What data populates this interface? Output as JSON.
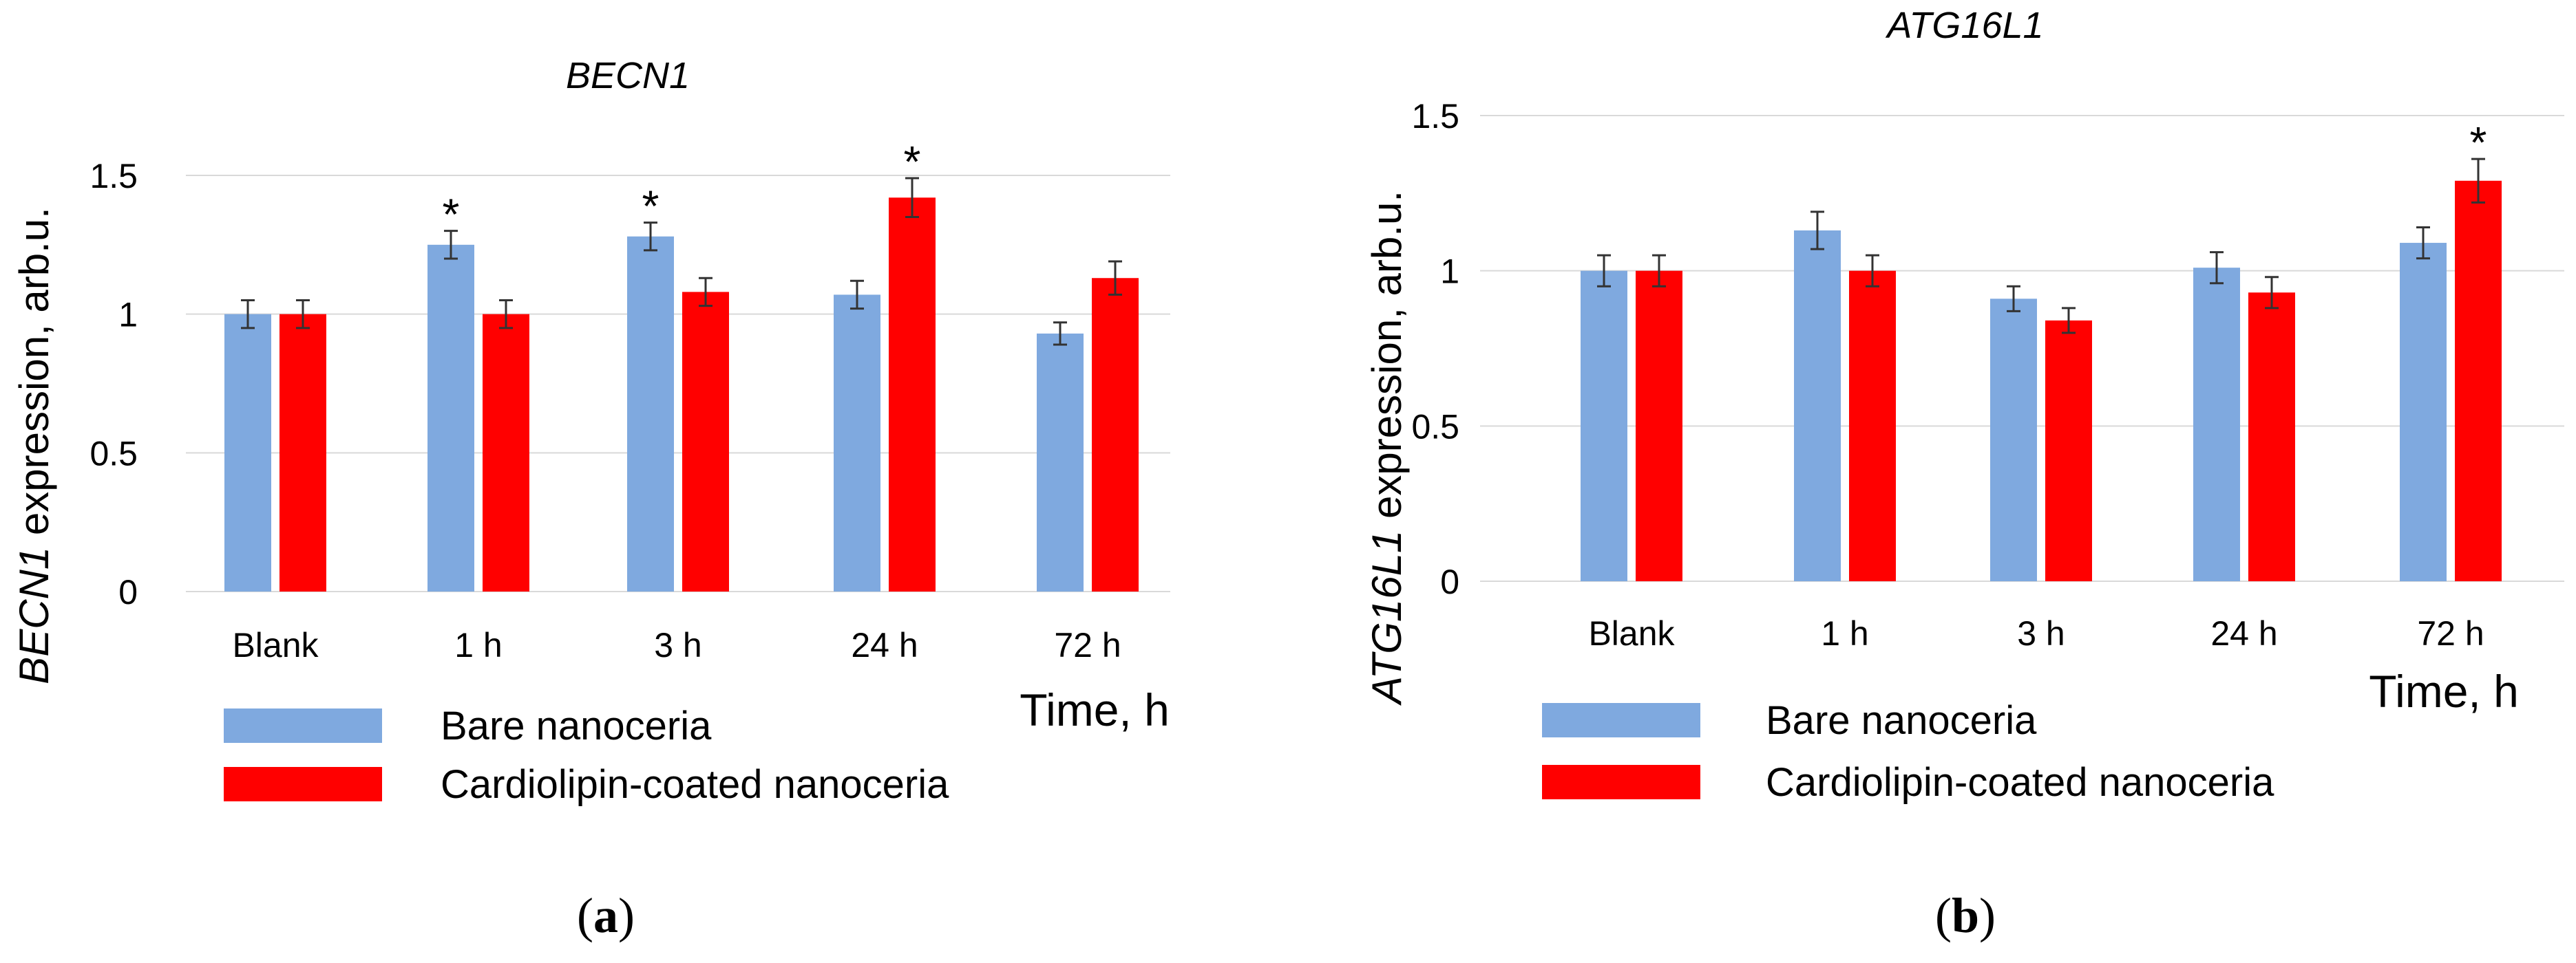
{
  "chart_data": [
    {
      "type": "bar",
      "panel_label": "a",
      "title": "BECN1",
      "ylabel_gene": "BECN1",
      "ylabel_rest": " expression, arb.u.",
      "xlabel": "Time, h",
      "categories": [
        "Blank",
        "1 h",
        "3 h",
        "24 h",
        "72 h"
      ],
      "ylim": [
        0,
        1.5
      ],
      "yticks": [
        0,
        0.5,
        1,
        1.5
      ],
      "ytick_labels": [
        "0",
        "0.5",
        "1",
        "1.5"
      ],
      "grid": true,
      "series": [
        {
          "name": "Bare nanoceria",
          "color": "#7FA9DF",
          "values": [
            1.0,
            1.25,
            1.28,
            1.07,
            0.93
          ],
          "errors": [
            0.05,
            0.05,
            0.05,
            0.05,
            0.04
          ],
          "significant": [
            false,
            true,
            true,
            false,
            false
          ]
        },
        {
          "name": "Cardiolipin-coated nanoceria",
          "color": "#FF0000",
          "values": [
            1.0,
            1.0,
            1.08,
            1.42,
            1.13
          ],
          "errors": [
            0.05,
            0.05,
            0.05,
            0.07,
            0.06
          ],
          "significant": [
            false,
            false,
            false,
            true,
            false
          ]
        }
      ],
      "significance_marker": "*",
      "legend_position": "bottom-left"
    },
    {
      "type": "bar",
      "panel_label": "b",
      "title": "ATG16L1",
      "ylabel_gene": "ATG16L1",
      "ylabel_rest": " expression, arb.u.",
      "xlabel": "Time, h",
      "categories": [
        "Blank",
        "1 h",
        "3 h",
        "24 h",
        "72 h"
      ],
      "ylim": [
        0,
        1.5
      ],
      "yticks": [
        0,
        0.5,
        1,
        1.5
      ],
      "ytick_labels": [
        "0",
        "0.5",
        "1",
        "1.5"
      ],
      "grid": true,
      "series": [
        {
          "name": "Bare nanoceria",
          "color": "#7FA9DF",
          "values": [
            1.0,
            1.13,
            0.91,
            1.01,
            1.09
          ],
          "errors": [
            0.05,
            0.06,
            0.04,
            0.05,
            0.05
          ],
          "significant": [
            false,
            false,
            false,
            false,
            false
          ]
        },
        {
          "name": "Cardiolipin-coated nanoceria",
          "color": "#FF0000",
          "values": [
            1.0,
            1.0,
            0.84,
            0.93,
            1.29
          ],
          "errors": [
            0.05,
            0.05,
            0.04,
            0.05,
            0.07
          ],
          "significant": [
            false,
            false,
            false,
            false,
            true
          ]
        }
      ],
      "significance_marker": "*",
      "legend_position": "bottom-left"
    }
  ]
}
